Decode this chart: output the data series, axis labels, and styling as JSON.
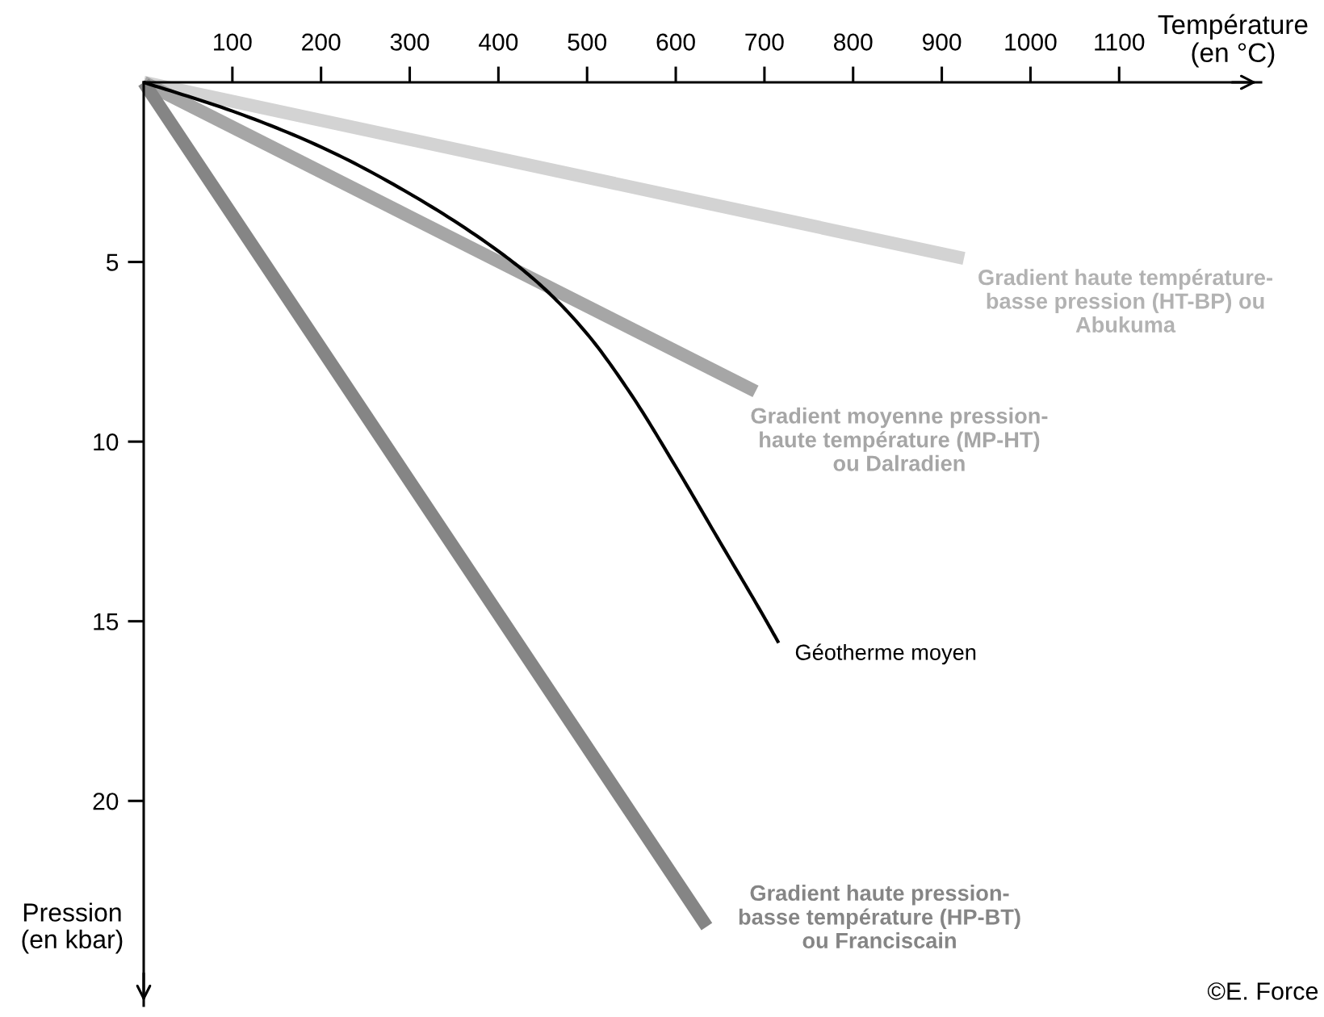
{
  "chart_data": {
    "type": "line",
    "xlabel": "Température\n(en °C)",
    "ylabel": "Pression\n(en kbar)",
    "xlim": [
      0,
      1260
    ],
    "ylim": [
      25.7,
      0
    ],
    "xticks": [
      100,
      200,
      300,
      400,
      500,
      600,
      700,
      800,
      900,
      1000,
      1100
    ],
    "yticks": [
      5,
      10,
      15,
      20
    ],
    "series": [
      {
        "name": "Gradient haute température-\nbasse pression (HT-BP) ou\nAbukuma",
        "color": "#d3d3d3",
        "x": [
          0,
          925
        ],
        "values": [
          0,
          4.9
        ]
      },
      {
        "name": "Gradient moyenne pression-\nhaute température (MP-HT)\nou Dalradien",
        "color": "#a6a6a6",
        "x": [
          0,
          690
        ],
        "values": [
          0,
          8.6
        ]
      },
      {
        "name": "Gradient haute pression-\nbasse température (HP-BT)\nou Franciscain",
        "color": "#858585",
        "x": [
          0,
          635
        ],
        "values": [
          0,
          23.5
        ]
      },
      {
        "name": "Géotherme moyen",
        "color": "#000000",
        "x": [
          0,
          100,
          200,
          300,
          400,
          450,
          500,
          550,
          600,
          650,
          700,
          716
        ],
        "values": [
          0,
          0.8,
          1.8,
          3.1,
          4.7,
          5.7,
          7.0,
          8.7,
          10.7,
          12.8,
          14.9,
          15.6
        ]
      }
    ],
    "annotations": [
      "©E. Force"
    ]
  }
}
